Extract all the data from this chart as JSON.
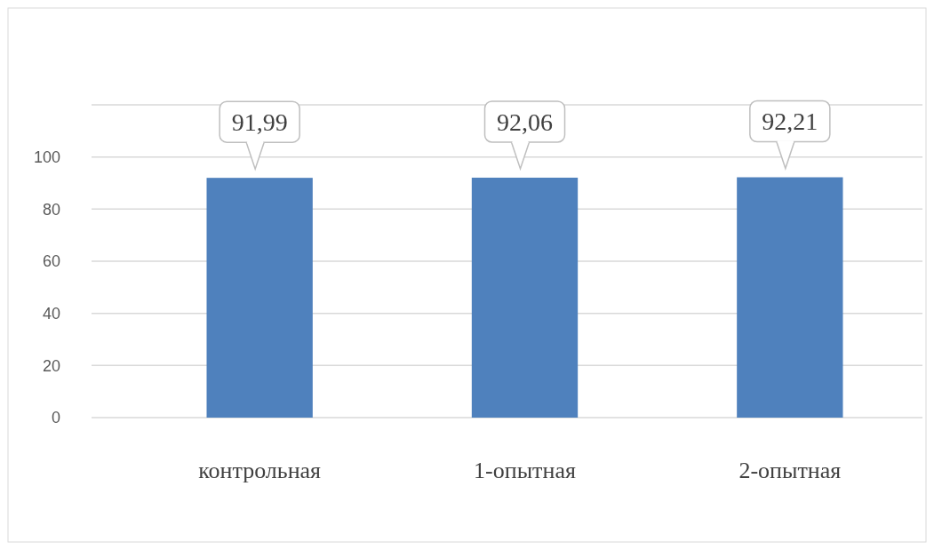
{
  "chart_data": {
    "type": "bar",
    "categories": [
      "контрольная",
      "1-опытная",
      "2-опытная"
    ],
    "values": [
      91.99,
      92.06,
      92.21
    ],
    "value_labels": [
      "91,99",
      "92,06",
      "92,21"
    ],
    "color": "#4f81bd",
    "ylim": [
      0,
      120
    ],
    "yticks": [
      0,
      20,
      40,
      60,
      80,
      100,
      {
        "value": 120,
        "label": null
      }
    ],
    "grid": true
  }
}
